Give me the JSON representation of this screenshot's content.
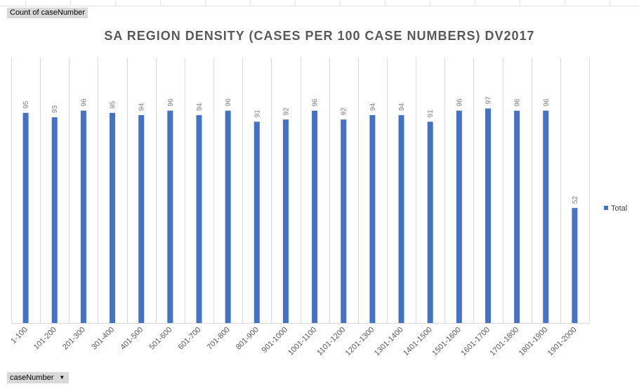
{
  "pivot": {
    "value_field": "Count of caseNumber",
    "axis_field": "caseNumber"
  },
  "colors": {
    "bar": "#4472c4",
    "grid": "#d9d9d9",
    "title": "#595959"
  },
  "icons": {
    "axis_dropdown": "dropdown-arrow-icon"
  },
  "chart_data": {
    "type": "bar",
    "title": "SA REGION DENSITY (CASES PER 100 CASE NUMBERS) DV2017",
    "xlabel": "",
    "ylabel": "",
    "categories": [
      "1-100",
      "101-200",
      "201-300",
      "301-400",
      "401-500",
      "501-600",
      "601-700",
      "701-800",
      "801-900",
      "901-1000",
      "1001-1100",
      "1101-1200",
      "1201-1300",
      "1301-1400",
      "1401-1500",
      "1501-1600",
      "1601-1700",
      "1701-1800",
      "1801-1900",
      "1901-2000"
    ],
    "series": [
      {
        "name": "Total",
        "values": [
          95,
          93,
          96,
          95,
          94,
          96,
          94,
          96,
          91,
          92,
          96,
          92,
          94,
          94,
          91,
          96,
          97,
          96,
          96,
          52
        ]
      }
    ],
    "ylim": [
      0,
      120
    ],
    "grid": true,
    "data_labels": true,
    "legend_position": "right"
  }
}
